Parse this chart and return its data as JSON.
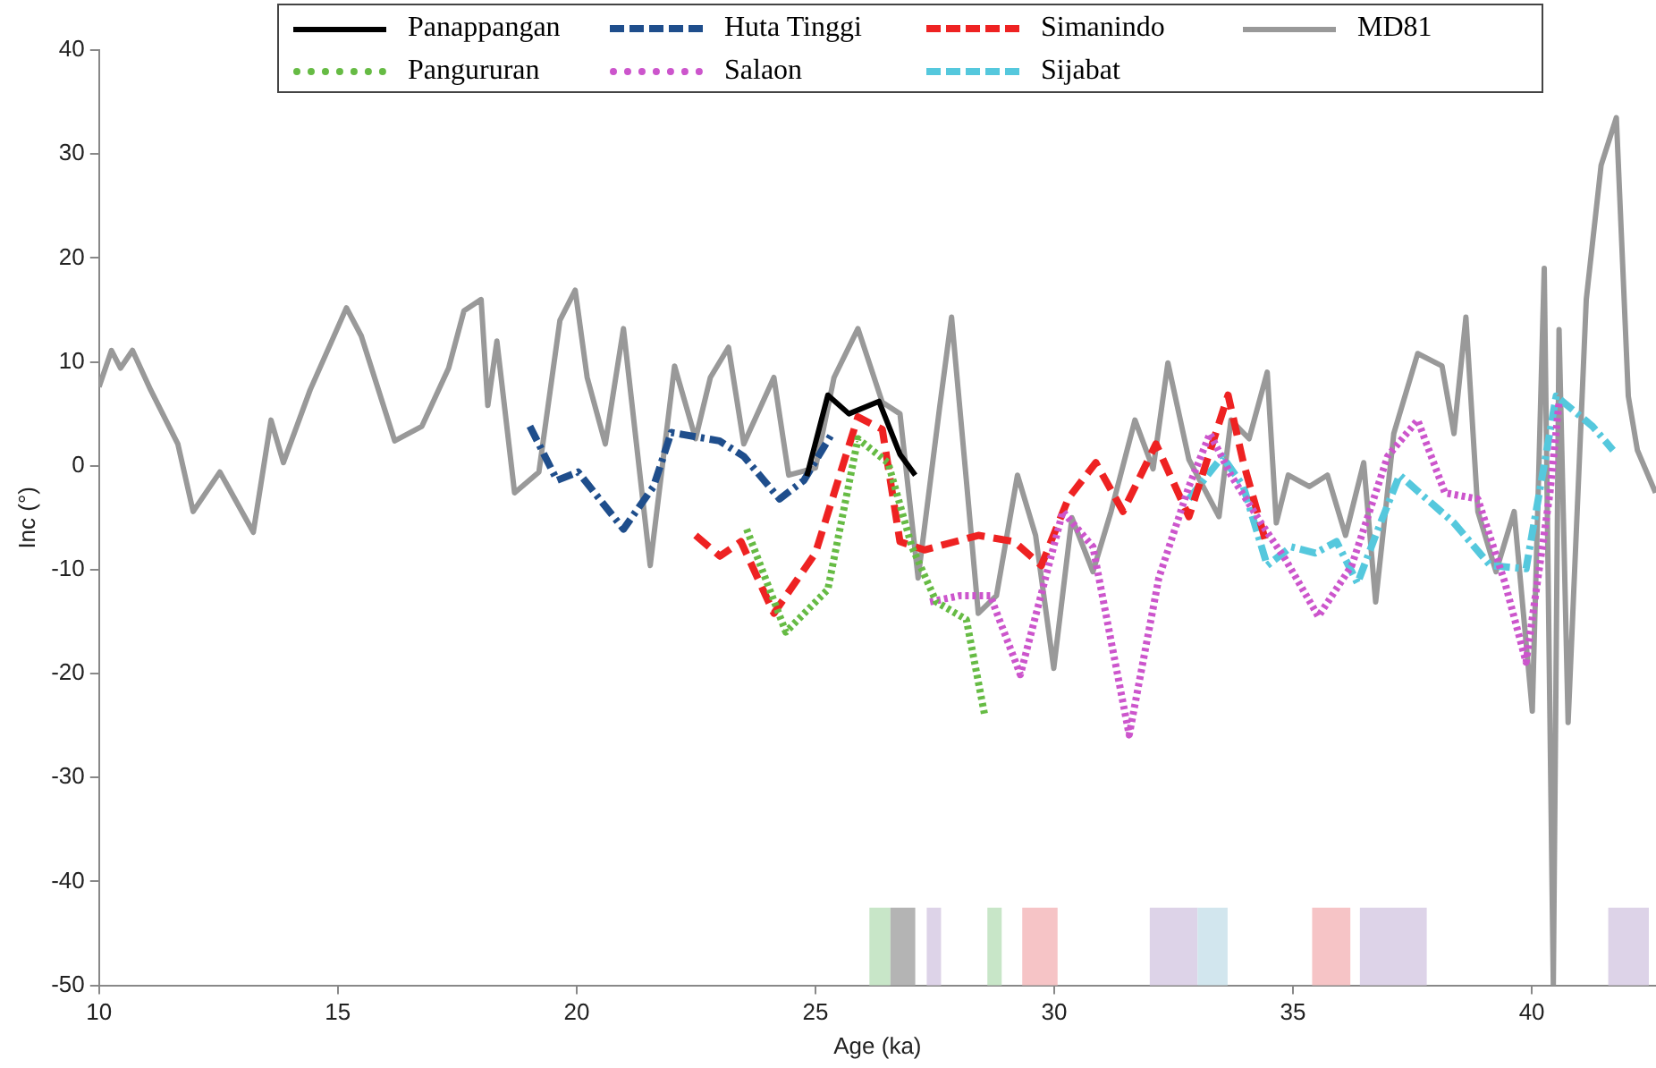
{
  "chart_data": {
    "type": "line",
    "xlabel": "Age (ka)",
    "ylabel": "Inc (°)",
    "xlim": [
      10,
      42.6
    ],
    "xticks": [
      10,
      15,
      20,
      25,
      30,
      35,
      40
    ],
    "ylim": [
      -50,
      40
    ],
    "yticks": [
      -50,
      -40,
      -30,
      -20,
      -10,
      0,
      10,
      20,
      30,
      40
    ],
    "grid": false,
    "legend": "top",
    "marker": "none",
    "series": [
      {
        "name": "Panappangan",
        "color": "#000000",
        "line_style": "solid",
        "x": [
          24.82,
          25.26,
          25.7,
          26.33,
          26.77,
          27.09
        ],
        "values": [
          -1.0,
          6.8,
          5.0,
          6.2,
          1.1,
          -0.9
        ]
      },
      {
        "name": "Pangururan",
        "color": "#66bb44",
        "line_style": "dotted",
        "x": [
          23.56,
          24.38,
          25.26,
          25.89,
          26.52,
          27.02,
          27.53,
          28.16,
          28.54
        ],
        "values": [
          -6.1,
          -16.0,
          -11.9,
          2.6,
          0.3,
          -7.8,
          -13.1,
          -14.8,
          -23.9
        ]
      },
      {
        "name": "Huta Tinggi",
        "color": "#1f4e8c",
        "line_style": "dashdot",
        "x": [
          19.02,
          19.59,
          20.03,
          20.98,
          21.61,
          21.98,
          22.99,
          23.5,
          24.25,
          24.76,
          25.32
        ],
        "values": [
          3.8,
          -1.4,
          -0.6,
          -6.1,
          -2.0,
          3.2,
          2.4,
          0.9,
          -3.2,
          -1.4,
          2.9
        ]
      },
      {
        "name": "Salaon",
        "color": "#cc55cc",
        "line_style": "dotted",
        "x": [
          27.4,
          28.03,
          28.66,
          29.29,
          30.18,
          30.81,
          31.57,
          32.19,
          32.82,
          33.26,
          33.7,
          34.33,
          34.84,
          35.53,
          36.23,
          36.98,
          37.61,
          38.18,
          38.87,
          39.44,
          39.88,
          40.38,
          40.57
        ],
        "values": [
          -13.1,
          -12.5,
          -12.5,
          -20.1,
          -4.4,
          -7.8,
          -25.9,
          -10.8,
          -2.0,
          3.1,
          -0.9,
          -5.5,
          -9.0,
          -14.5,
          -9.6,
          0.9,
          4.4,
          -2.6,
          -3.2,
          -11.3,
          -18.9,
          -2.6,
          6.1
        ]
      },
      {
        "name": "Simanindo",
        "color": "#ee2222",
        "line_style": "dashed",
        "x": [
          22.49,
          23.0,
          23.44,
          24.13,
          25.0,
          25.89,
          26.4,
          26.77,
          27.28,
          28.41,
          29.16,
          29.73,
          30.3,
          30.87,
          31.44,
          32.13,
          32.82,
          33.64,
          33.96,
          34.46
        ],
        "values": [
          -6.7,
          -8.7,
          -7.3,
          -14.2,
          -8.4,
          4.7,
          3.5,
          -7.3,
          -8.1,
          -6.7,
          -7.3,
          -9.6,
          -3.1,
          0.3,
          -4.4,
          2.1,
          -4.9,
          6.8,
          0.3,
          -7.8
        ]
      },
      {
        "name": "Sijabat",
        "color": "#55c8dd",
        "line_style": "dashdot",
        "x": [
          32.82,
          33.52,
          33.96,
          34.46,
          34.96,
          35.47,
          35.91,
          36.35,
          36.73,
          37.23,
          38.37,
          39.13,
          39.88,
          40.51,
          41.27,
          41.7
        ],
        "values": [
          -3.2,
          0.9,
          -2.0,
          -9.6,
          -7.8,
          -8.4,
          -7.3,
          -11.3,
          -6.7,
          -0.9,
          -5.5,
          -9.6,
          -9.9,
          6.7,
          3.8,
          1.5
        ]
      },
      {
        "name": "MD81",
        "color": "#999999",
        "line_style": "solid",
        "x": [
          10.0,
          10.26,
          10.45,
          10.7,
          11.08,
          11.65,
          11.97,
          12.53,
          13.23,
          13.6,
          13.86,
          14.42,
          15.18,
          15.49,
          16.19,
          16.76,
          17.32,
          17.64,
          18.0,
          18.14,
          18.33,
          18.7,
          19.21,
          19.65,
          19.97,
          20.22,
          20.6,
          20.98,
          21.54,
          22.05,
          22.49,
          22.8,
          23.18,
          23.5,
          24.13,
          24.44,
          25.0,
          25.39,
          25.89,
          26.4,
          26.77,
          27.15,
          27.6,
          27.85,
          28.16,
          28.41,
          28.79,
          29.23,
          29.61,
          29.99,
          30.37,
          30.81,
          31.19,
          31.69,
          32.07,
          32.38,
          32.82,
          33.45,
          33.7,
          34.08,
          34.46,
          34.65,
          34.9,
          35.34,
          35.72,
          36.1,
          36.48,
          36.73,
          37.11,
          37.61,
          38.12,
          38.37,
          38.62,
          38.87,
          39.25,
          39.63,
          40.01,
          40.26,
          40.45,
          40.57,
          40.76,
          41.14,
          41.45,
          41.77,
          42.02,
          42.21,
          42.59
        ],
        "values": [
          7.6,
          11.1,
          9.4,
          11.1,
          7.3,
          2.1,
          -4.4,
          -0.6,
          -6.4,
          4.4,
          0.3,
          7.3,
          15.2,
          12.5,
          2.4,
          3.8,
          9.4,
          14.9,
          16.0,
          5.8,
          12.0,
          -2.6,
          -0.6,
          14.0,
          16.9,
          8.5,
          2.1,
          13.2,
          -9.6,
          9.6,
          2.6,
          8.5,
          11.4,
          2.1,
          8.5,
          -0.9,
          -0.2,
          8.5,
          13.2,
          6.1,
          5.0,
          -10.8,
          5.6,
          14.3,
          -1.4,
          -14.2,
          -12.5,
          -0.9,
          -6.7,
          -19.5,
          -5.0,
          -10.2,
          -4.4,
          4.4,
          -0.3,
          9.9,
          0.6,
          -4.9,
          4.4,
          2.6,
          9.0,
          -5.5,
          -0.9,
          -2.0,
          -0.9,
          -6.7,
          0.3,
          -13.1,
          3.1,
          10.8,
          9.6,
          3.1,
          14.3,
          -4.4,
          -10.2,
          -4.4,
          -23.6,
          19.0,
          -50,
          13.1,
          -24.7,
          16.0,
          28.9,
          33.5,
          6.7,
          1.5,
          -2.6
        ]
      }
    ],
    "bands": [
      {
        "axis": "x",
        "from": 26.13,
        "to": 26.57,
        "color": "#c8e6c8"
      },
      {
        "axis": "x",
        "from": 26.57,
        "to": 27.09,
        "color": "#b4b4b4"
      },
      {
        "axis": "x",
        "from": 27.33,
        "to": 27.63,
        "color": "#ddd3e8"
      },
      {
        "axis": "x",
        "from": 28.6,
        "to": 28.9,
        "color": "#c8e6c8"
      },
      {
        "axis": "x",
        "from": 29.33,
        "to": 30.07,
        "color": "#f6c4c6"
      },
      {
        "axis": "x",
        "from": 32.0,
        "to": 33.0,
        "color": "#ddd3e8"
      },
      {
        "axis": "x",
        "from": 33.0,
        "to": 33.63,
        "color": "#d2e6ee"
      },
      {
        "axis": "x",
        "from": 35.4,
        "to": 36.2,
        "color": "#f6c4c6"
      },
      {
        "axis": "x",
        "from": 36.4,
        "to": 37.8,
        "color": "#ddd3e8"
      },
      {
        "axis": "x",
        "from": 41.6,
        "to": 42.45,
        "color": "#ddd3e8"
      }
    ]
  }
}
